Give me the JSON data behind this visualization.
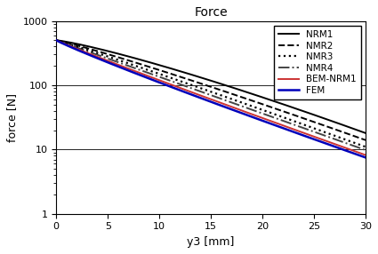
{
  "title": "Force",
  "xlabel": "y3 [mm]",
  "ylabel": "force [N]",
  "xlim": [
    0,
    30
  ],
  "ylim": [
    1,
    1000
  ],
  "x_ticks": [
    0,
    5,
    10,
    15,
    20,
    25,
    30
  ],
  "curve_params": {
    "NRM1": [
      500,
      18.0,
      1.2
    ],
    "NMR2": [
      500,
      14.0,
      1.1
    ],
    "NMR3": [
      500,
      11.0,
      1.05
    ],
    "NMR4": [
      500,
      9.8,
      1.0
    ],
    "BEM-NRM1": [
      500,
      8.2,
      0.96
    ],
    "FEM": [
      500,
      7.5,
      0.93
    ]
  },
  "styles": {
    "NRM1": {
      "color": "#000000",
      "linestyle": "-",
      "linewidth": 1.4,
      "zorder": 5
    },
    "NMR2": {
      "color": "#000000",
      "linestyle": "--",
      "linewidth": 1.4,
      "zorder": 4
    },
    "NMR3": {
      "color": "#000000",
      "linestyle": ":",
      "linewidth": 1.6,
      "zorder": 3
    },
    "NMR4": {
      "color": "#444444",
      "linestyle": "-.",
      "linewidth": 1.4,
      "zorder": 2
    },
    "BEM-NRM1": {
      "color": "#cc3333",
      "linestyle": "-",
      "linewidth": 1.4,
      "zorder": 6
    },
    "FEM": {
      "color": "#0000bb",
      "linestyle": "-",
      "linewidth": 1.8,
      "zorder": 7
    }
  },
  "background_color": "#ffffff",
  "grid_color": "#000000",
  "legend_order": [
    "NRM1",
    "NMR2",
    "NMR3",
    "NMR4",
    "BEM-NRM1",
    "FEM"
  ]
}
